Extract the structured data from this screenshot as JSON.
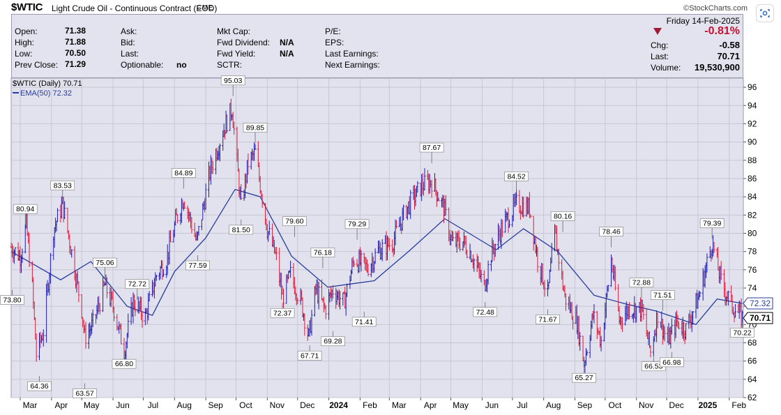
{
  "header": {
    "symbol": "$WTIC",
    "name": "Light Crude Oil - Continuous Contract (EOD)",
    "exchange": "CME",
    "brand": "©StockCharts.com"
  },
  "quote": {
    "date": "Friday  14-Feb-2025",
    "change_pct": "-0.81%",
    "rows_left": [
      {
        "label": "Open:",
        "value": "71.38"
      },
      {
        "label": "High:",
        "value": "71.88"
      },
      {
        "label": "Low:",
        "value": "70.50"
      },
      {
        "label": "Prev Close:",
        "value": "71.29"
      }
    ],
    "rows_mid": [
      {
        "label": "Ask:",
        "value": ""
      },
      {
        "label": "Bid:",
        "value": ""
      },
      {
        "label": "Last:",
        "value": ""
      },
      {
        "label": "Optionable:",
        "value": "no"
      }
    ],
    "rows_mid2": [
      {
        "label": "Mkt Cap:",
        "value": ""
      },
      {
        "label": "Fwd Dividend:",
        "value": "N/A"
      },
      {
        "label": "Fwd Yield:",
        "value": "N/A"
      },
      {
        "label": "SCTR:",
        "value": ""
      }
    ],
    "rows_right": [
      {
        "label": "P/E:"
      },
      {
        "label": "EPS:"
      },
      {
        "label": "Last Earnings:"
      },
      {
        "label": "Next Earnings:"
      }
    ],
    "rows_far": [
      {
        "label": "Chg:",
        "value": "-0.58"
      },
      {
        "label": "Last:",
        "value": "70.71"
      },
      {
        "label": "Volume:",
        "value": "19,530,900"
      }
    ]
  },
  "colors": {
    "background": "#ffffff",
    "panel": "#e3e3f0",
    "plot_bg": "#e2e2ee",
    "up": "#1c1ca8",
    "down": "#d81c3c",
    "ema": "#283c9c",
    "grid": "#c6c6d6",
    "negative": "#c8102e"
  },
  "chart_data": {
    "type": "line",
    "title": "$WTIC (Daily) 70.71",
    "legend": [
      {
        "name": "$WTIC (Daily) 70.71",
        "icon": "candlestick-icon"
      },
      {
        "name": "EMA(50) 72.32",
        "icon": "line-icon"
      }
    ],
    "legend_position": "top-left",
    "ylim": [
      62,
      97
    ],
    "y_ticks": [
      62,
      64,
      66,
      68,
      70,
      72,
      74,
      76,
      78,
      80,
      82,
      84,
      86,
      88,
      90,
      92,
      94,
      96
    ],
    "x_ticks": [
      "Mar",
      "Apr",
      "May",
      "Jun",
      "Jul",
      "Aug",
      "Sep",
      "Oct",
      "Nov",
      "Dec",
      "2024",
      "Feb",
      "Mar",
      "Apr",
      "May",
      "Jun",
      "Jul",
      "Aug",
      "Sep",
      "Oct",
      "Nov",
      "Dec",
      "2025",
      "Feb"
    ],
    "grid": true,
    "series": [
      {
        "name": "$WTIC",
        "style": "ohlc bars",
        "x": [
          "2023-02-20",
          "2023-03-01",
          "2023-03-07",
          "2023-03-13",
          "2023-03-17",
          "2023-03-24",
          "2023-04-03",
          "2023-04-12",
          "2023-04-21",
          "2023-05-01",
          "2023-05-04",
          "2023-05-12",
          "2023-05-24",
          "2023-06-02",
          "2023-06-12",
          "2023-06-21",
          "2023-07-03",
          "2023-07-14",
          "2023-07-24",
          "2023-08-03",
          "2023-08-10",
          "2023-08-23",
          "2023-09-05",
          "2023-09-18",
          "2023-09-27",
          "2023-10-06",
          "2023-10-13",
          "2023-10-20",
          "2023-11-01",
          "2023-11-10",
          "2023-11-16",
          "2023-11-24",
          "2023-12-05",
          "2023-12-12",
          "2023-12-19",
          "2023-12-28",
          "2024-01-05",
          "2024-01-16",
          "2024-01-26",
          "2024-02-08",
          "2024-02-20",
          "2024-03-04",
          "2024-03-18",
          "2024-04-02",
          "2024-04-12",
          "2024-04-24",
          "2024-05-02",
          "2024-05-13",
          "2024-05-22",
          "2024-06-03",
          "2024-06-10",
          "2024-06-21",
          "2024-07-05",
          "2024-07-18",
          "2024-07-26",
          "2024-08-05",
          "2024-08-12",
          "2024-08-22",
          "2024-09-03",
          "2024-09-10",
          "2024-09-19",
          "2024-09-27",
          "2024-10-07",
          "2024-10-15",
          "2024-10-25",
          "2024-11-06",
          "2024-11-15",
          "2024-11-22",
          "2024-12-02",
          "2024-12-11",
          "2024-12-20",
          "2025-01-02",
          "2025-01-15",
          "2025-01-24",
          "2025-02-03",
          "2025-02-14"
        ],
        "y": [
          78.5,
          77.5,
          80.9,
          74.0,
          66.7,
          69.3,
          80.4,
          83.2,
          77.9,
          71.7,
          68.6,
          70.0,
          74.3,
          71.7,
          67.1,
          72.5,
          70.8,
          75.4,
          77.1,
          81.6,
          84.0,
          79.0,
          86.7,
          91.2,
          93.7,
          82.8,
          87.7,
          88.8,
          80.5,
          77.2,
          72.9,
          75.5,
          72.3,
          68.6,
          73.9,
          71.7,
          73.8,
          72.4,
          77.2,
          76.2,
          78.2,
          79.0,
          82.7,
          85.2,
          85.7,
          82.8,
          78.9,
          79.1,
          77.6,
          74.2,
          77.7,
          80.7,
          83.2,
          82.8,
          77.2,
          73.2,
          80.1,
          73.0,
          70.3,
          65.8,
          71.0,
          68.2,
          77.1,
          70.5,
          71.8,
          71.7,
          67.0,
          71.2,
          68.1,
          70.3,
          69.5,
          73.1,
          79.0,
          74.7,
          72.2,
          70.7
        ]
      },
      {
        "name": "EMA(50)",
        "x": [
          "2023-02-20",
          "2023-04-10",
          "2023-05-10",
          "2023-06-15",
          "2023-07-10",
          "2023-08-01",
          "2023-09-01",
          "2023-09-30",
          "2023-10-25",
          "2023-11-25",
          "2023-12-31",
          "2024-02-15",
          "2024-03-20",
          "2024-04-25",
          "2024-06-15",
          "2024-07-12",
          "2024-08-15",
          "2024-09-20",
          "2024-10-20",
          "2024-11-20",
          "2024-12-30",
          "2025-01-20",
          "2025-02-14"
        ],
        "y": [
          78.0,
          74.9,
          76.9,
          72.0,
          71.0,
          75.8,
          79.5,
          84.8,
          84.0,
          77.5,
          74.1,
          74.8,
          78.0,
          81.6,
          78.2,
          80.5,
          78.0,
          73.2,
          72.3,
          71.5,
          70.0,
          72.8,
          72.32
        ]
      }
    ],
    "annotations": [
      {
        "x": "2023-02-21",
        "y": 73.8,
        "label": "73.80",
        "pos": "below"
      },
      {
        "x": "2023-03-06",
        "y": 80.94,
        "label": "80.94",
        "pos": "above"
      },
      {
        "x": "2023-03-20",
        "y": 64.36,
        "label": "64.36",
        "pos": "below"
      },
      {
        "x": "2023-04-12",
        "y": 83.53,
        "label": "83.53",
        "pos": "above"
      },
      {
        "x": "2023-05-04",
        "y": 63.57,
        "label": "63.57",
        "pos": "below"
      },
      {
        "x": "2023-05-24",
        "y": 75.06,
        "label": "75.06",
        "pos": "above"
      },
      {
        "x": "2023-06-12",
        "y": 66.8,
        "label": "66.80",
        "pos": "below"
      },
      {
        "x": "2023-06-25",
        "y": 72.72,
        "label": "72.72",
        "pos": "above"
      },
      {
        "x": "2023-08-10",
        "y": 84.89,
        "label": "84.89",
        "pos": "above"
      },
      {
        "x": "2023-08-24",
        "y": 77.59,
        "label": "77.59",
        "pos": "below"
      },
      {
        "x": "2023-09-28",
        "y": 95.03,
        "label": "95.03",
        "pos": "above"
      },
      {
        "x": "2023-10-06",
        "y": 81.5,
        "label": "81.50",
        "pos": "below"
      },
      {
        "x": "2023-10-20",
        "y": 89.85,
        "label": "89.85",
        "pos": "above"
      },
      {
        "x": "2023-11-16",
        "y": 72.37,
        "label": "72.37",
        "pos": "below"
      },
      {
        "x": "2023-11-28",
        "y": 79.6,
        "label": "79.60",
        "pos": "above"
      },
      {
        "x": "2023-12-13",
        "y": 67.71,
        "label": "67.71",
        "pos": "below"
      },
      {
        "x": "2023-12-26",
        "y": 76.18,
        "label": "76.18",
        "pos": "above"
      },
      {
        "x": "2024-01-05",
        "y": 69.28,
        "label": "69.28",
        "pos": "below"
      },
      {
        "x": "2024-01-29",
        "y": 79.29,
        "label": "79.29",
        "pos": "above"
      },
      {
        "x": "2024-02-05",
        "y": 71.41,
        "label": "71.41",
        "pos": "below"
      },
      {
        "x": "2024-04-12",
        "y": 87.67,
        "label": "87.67",
        "pos": "above"
      },
      {
        "x": "2024-06-04",
        "y": 72.48,
        "label": "72.48",
        "pos": "below"
      },
      {
        "x": "2024-07-05",
        "y": 84.52,
        "label": "84.52",
        "pos": "above"
      },
      {
        "x": "2024-08-05",
        "y": 71.67,
        "label": "71.67",
        "pos": "below"
      },
      {
        "x": "2024-08-20",
        "y": 80.16,
        "label": "80.16",
        "pos": "above"
      },
      {
        "x": "2024-09-10",
        "y": 65.27,
        "label": "65.27",
        "pos": "below"
      },
      {
        "x": "2024-10-07",
        "y": 78.46,
        "label": "78.46",
        "pos": "above"
      },
      {
        "x": "2024-11-06",
        "y": 72.88,
        "label": "72.88",
        "pos": "above"
      },
      {
        "x": "2024-11-18",
        "y": 66.53,
        "label": "66.53",
        "pos": "below"
      },
      {
        "x": "2024-11-27",
        "y": 71.51,
        "label": "71.51",
        "pos": "above"
      },
      {
        "x": "2024-12-06",
        "y": 66.98,
        "label": "66.98",
        "pos": "below"
      },
      {
        "x": "2025-01-15",
        "y": 79.39,
        "label": "79.39",
        "pos": "above"
      },
      {
        "x": "2025-02-14",
        "y": 70.22,
        "label": "70.22",
        "pos": "below"
      }
    ],
    "price_tags": [
      {
        "label": "72.32",
        "value": 72.32,
        "style": "ema"
      },
      {
        "label": "70.71",
        "value": 70.71,
        "style": "last"
      }
    ]
  }
}
